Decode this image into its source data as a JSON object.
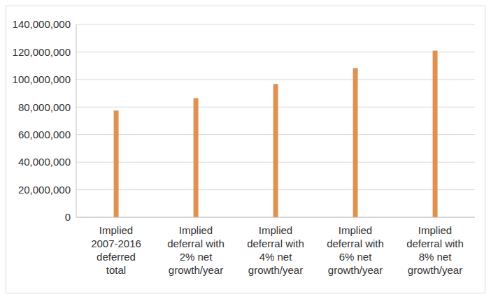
{
  "chart_data": {
    "type": "bar",
    "categories": [
      "Implied 2007-2016 deferred total",
      "Implied deferral with 2% net growth/year",
      "Implied deferral with 4% net growth/year",
      "Implied deferral with 6% net growth/year",
      "Implied deferral with 8% net growth/year"
    ],
    "values": [
      77500000,
      86500000,
      96800000,
      108300000,
      121000000
    ],
    "color": "#e0914f",
    "ylim": [
      0,
      140000000
    ],
    "yticks": [
      0,
      {
        "value": 20000000,
        "label": "20,000,000"
      },
      {
        "value": 40000000,
        "label": "40,000,000"
      },
      {
        "value": 60000000,
        "label": "60,000,000"
      },
      {
        "value": 80000000,
        "label": "80,000,000"
      },
      {
        "value": 100000000,
        "label": "100,000,000"
      },
      {
        "value": 120000000,
        "label": "120,000,000"
      },
      {
        "value": 140000000,
        "label": "140,000,000"
      }
    ],
    "grid": true
  }
}
